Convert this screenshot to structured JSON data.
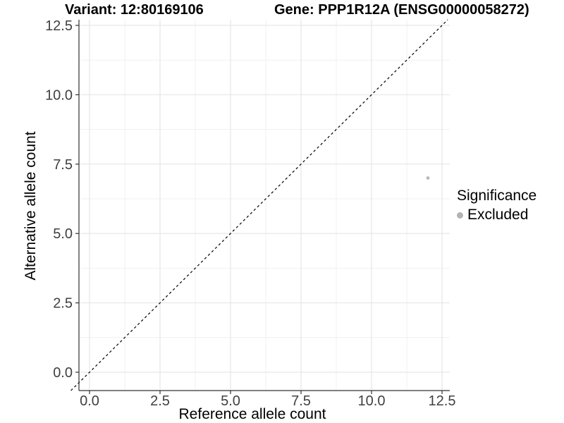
{
  "chart_data": {
    "type": "scatter",
    "title_left": "Variant: 12:80169106",
    "title_right": "Gene: PPP1R12A (ENSG00000058272)",
    "xlabel": "Reference allele count",
    "ylabel": "Alternative allele count",
    "x_ticks": [
      0.0,
      2.5,
      5.0,
      7.5,
      10.0,
      12.5
    ],
    "y_ticks": [
      0.0,
      2.5,
      5.0,
      7.5,
      10.0,
      12.5
    ],
    "x_minor_ticks": [
      1.25,
      3.75,
      6.25,
      8.75,
      11.25
    ],
    "y_minor_ticks": [
      1.25,
      3.75,
      6.25,
      8.75,
      11.25
    ],
    "xlim": [
      -0.375,
      12.775
    ],
    "ylim": [
      -0.661,
      12.703
    ],
    "grid": "major_and_minor",
    "identity_line": {
      "slope": 1,
      "intercept": 0,
      "style": "dashed",
      "color": "#000000"
    },
    "series": [
      {
        "name": "Excluded",
        "marker": "circle",
        "color": "#b8b8b8",
        "points": [
          {
            "x": 12,
            "y": 7
          }
        ]
      }
    ],
    "legend": {
      "position": "right",
      "title": "Significance",
      "items": [
        {
          "label": "Excluded",
          "color": "#b3b3b3"
        }
      ]
    }
  },
  "colors": {
    "background": "#ffffff",
    "grid_major": "#e2e2e2",
    "grid_minor": "#f0f0f0",
    "axis_line": "#333333",
    "tick_mark": "#333333",
    "tick_label": "#404040",
    "title": "#000000"
  }
}
